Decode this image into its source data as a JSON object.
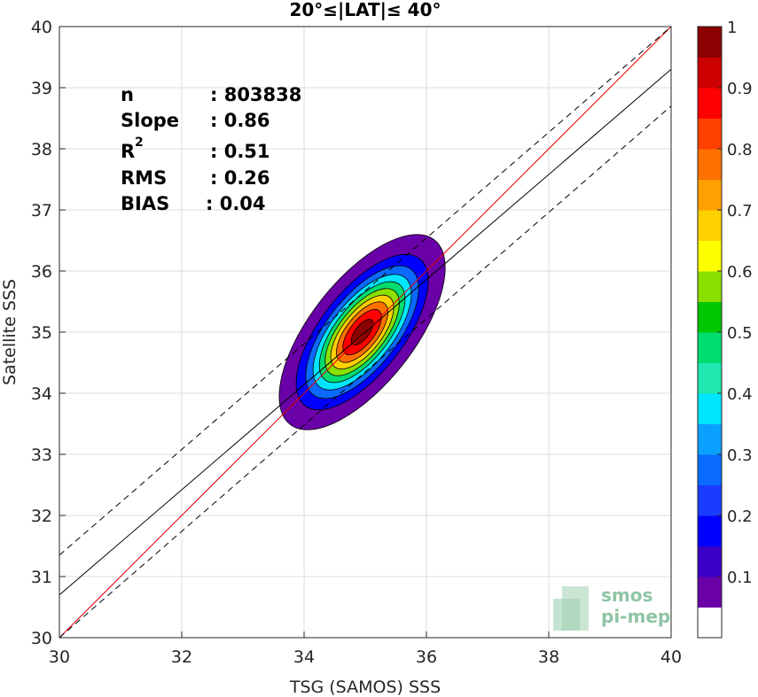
{
  "chart_data": {
    "type": "contour",
    "title": "20°≤|LAT|≤ 40°",
    "xlabel": "TSG (SAMOS) SSS",
    "ylabel": "Satellite SSS",
    "xlim": [
      30,
      40
    ],
    "ylim": [
      30,
      40
    ],
    "xticks": [
      "30",
      "32",
      "34",
      "36",
      "38",
      "40"
    ],
    "yticks": [
      "30",
      "31",
      "32",
      "33",
      "34",
      "35",
      "36",
      "37",
      "38",
      "39",
      "40"
    ],
    "grid": true,
    "stats": [
      {
        "label": "n",
        "value": ": 803838"
      },
      {
        "label": "Slope",
        "value": ": 0.86"
      },
      {
        "label": "R",
        "sup": "2",
        "value": ": 0.51"
      },
      {
        "label": "RMS",
        "value": ": 0.26"
      },
      {
        "label": "BIAS",
        "value": ": 0.04"
      }
    ],
    "lines": [
      {
        "kind": "identity",
        "color": "#e00000",
        "x": [
          30,
          40
        ],
        "y": [
          30,
          40
        ]
      },
      {
        "kind": "regression",
        "color": "#000000",
        "x": [
          30,
          40
        ],
        "y": [
          30.7,
          39.3
        ]
      },
      {
        "kind": "upper-bound-dashed",
        "color": "#000000",
        "x": [
          30,
          40
        ],
        "y": [
          31.35,
          40
        ]
      },
      {
        "kind": "lower-bound-dashed",
        "color": "#000000",
        "x": [
          30,
          40
        ],
        "y": [
          30.0,
          38.7
        ]
      }
    ],
    "density_center": {
      "x": 34.95,
      "y": 35.0
    },
    "contour_levels": [
      0.05,
      0.15,
      0.25,
      0.35,
      0.45,
      0.55,
      0.65,
      0.75,
      0.85,
      0.95
    ],
    "colorbar": {
      "range": [
        0,
        1
      ],
      "ticks": [
        "0.1",
        "0.2",
        "0.3",
        "0.4",
        "0.5",
        "0.6",
        "0.7",
        "0.8",
        "0.9",
        "1"
      ],
      "colors": [
        "#ffffff",
        "#6a00a8",
        "#3a00c8",
        "#0000ff",
        "#1a3cff",
        "#0a6aff",
        "#0aa0ff",
        "#00e6ff",
        "#20e8b0",
        "#00dd70",
        "#00c800",
        "#8ce000",
        "#ffff00",
        "#ffd000",
        "#ffa000",
        "#ff7000",
        "#ff4000",
        "#ff0000",
        "#cc0000",
        "#8b0000"
      ]
    },
    "logo": {
      "line1": "smos",
      "line2": "pi-mep"
    }
  }
}
